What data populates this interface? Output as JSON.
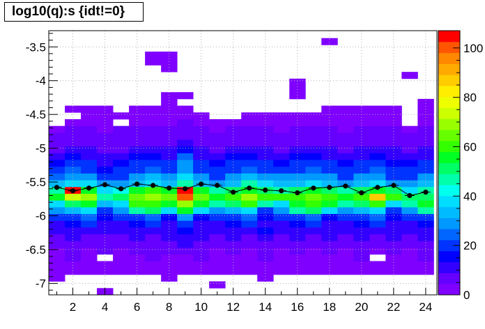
{
  "title": "log10(q):s {idt!=0}",
  "chart_data": {
    "type": "heatmap",
    "title": "log10(q):s {idt!=0}",
    "xlabel": "",
    "ylabel": "",
    "xlim": [
      0.5,
      24.7
    ],
    "ylim": [
      -7.17,
      -3.26
    ],
    "x_ticks": [
      2,
      4,
      6,
      8,
      10,
      12,
      14,
      16,
      18,
      20,
      22,
      24
    ],
    "y_ticks": [
      -3.5,
      -4,
      -4.5,
      -5,
      -5.5,
      -6,
      -6.5,
      -7
    ],
    "x_tick_labels": [
      "2",
      "4",
      "6",
      "8",
      "10",
      "12",
      "14",
      "16",
      "18",
      "20",
      "22",
      "24"
    ],
    "y_tick_labels": [
      "-3.5",
      "-4",
      "-4.5",
      "-5",
      "-5.5",
      "-6",
      "-6.5",
      "-7"
    ],
    "grid": true,
    "colorbar": {
      "zlim": [
        0,
        107
      ],
      "ticks": [
        0,
        20,
        40,
        60,
        80,
        100
      ],
      "tick_labels": [
        "0",
        "20",
        "40",
        "60",
        "80",
        "100"
      ],
      "colors": [
        "#7f00ff",
        "#6600ff",
        "#3300ff",
        "#0000ff",
        "#0033ff",
        "#0066ff",
        "#0099ff",
        "#00bbff",
        "#00ddff",
        "#00ffee",
        "#00ffaa",
        "#00ff66",
        "#00ff22",
        "#33ff00",
        "#66ff00",
        "#99ff00",
        "#ccff00",
        "#eeff00",
        "#ffee00",
        "#ffcc00",
        "#ffaa00",
        "#ff8800",
        "#ff5500",
        "#ff0000"
      ]
    },
    "x_bins": [
      1,
      2,
      3,
      4,
      5,
      6,
      7,
      8,
      9,
      10,
      11,
      12,
      13,
      14,
      15,
      16,
      17,
      18,
      19,
      20,
      21,
      22,
      23,
      24
    ],
    "y_bin_edges": [
      -7.17,
      -7.07,
      -6.97,
      -6.87,
      -6.77,
      -6.67,
      -6.57,
      -6.47,
      -6.37,
      -6.27,
      -6.17,
      -6.07,
      -5.97,
      -5.87,
      -5.77,
      -5.67,
      -5.57,
      -5.47,
      -5.37,
      -5.27,
      -5.17,
      -5.07,
      -4.97,
      -4.87,
      -4.77,
      -4.67,
      -4.57,
      -4.47,
      -4.37,
      -4.27,
      -4.17,
      -4.07,
      -3.97,
      -3.87,
      -3.77,
      -3.67,
      -3.57,
      -3.47,
      -3.37,
      -3.26
    ],
    "counts": [
      [
        0,
        0,
        0,
        2,
        0,
        0,
        0,
        0,
        0,
        0,
        0,
        0,
        0,
        0,
        0,
        0,
        0,
        0,
        0,
        0,
        0,
        0,
        0,
        0
      ],
      [
        0,
        0,
        0,
        0,
        0,
        0,
        0,
        0,
        0,
        0,
        2,
        0,
        0,
        0,
        0,
        0,
        0,
        0,
        0,
        0,
        0,
        0,
        0,
        0
      ],
      [
        2,
        0,
        0,
        0,
        0,
        0,
        0,
        2,
        0,
        0,
        0,
        0,
        0,
        2,
        0,
        0,
        0,
        0,
        0,
        0,
        0,
        0,
        0,
        0
      ],
      [
        2,
        2,
        2,
        2,
        2,
        2,
        2,
        2,
        2,
        2,
        2,
        2,
        2,
        2,
        2,
        2,
        2,
        2,
        2,
        2,
        2,
        2,
        2,
        2
      ],
      [
        2,
        3,
        2,
        3,
        2,
        3,
        2,
        3,
        2,
        3,
        2,
        3,
        2,
        3,
        2,
        3,
        2,
        3,
        2,
        3,
        2,
        3,
        2,
        3
      ],
      [
        2,
        5,
        2,
        0,
        2,
        3,
        5,
        4,
        3,
        5,
        2,
        4,
        3,
        5,
        2,
        4,
        3,
        4,
        2,
        5,
        0,
        4,
        3,
        5
      ],
      [
        3,
        6,
        4,
        5,
        3,
        5,
        6,
        7,
        5,
        6,
        4,
        5,
        3,
        6,
        4,
        5,
        3,
        6,
        4,
        5,
        3,
        6,
        4,
        5
      ],
      [
        5,
        8,
        5,
        6,
        5,
        8,
        5,
        6,
        9,
        6,
        5,
        7,
        6,
        8,
        5,
        7,
        6,
        8,
        5,
        7,
        6,
        8,
        5,
        7
      ],
      [
        8,
        9,
        8,
        6,
        8,
        9,
        8,
        9,
        9,
        10,
        8,
        9,
        8,
        9,
        8,
        9,
        8,
        9,
        8,
        9,
        8,
        9,
        8,
        9
      ],
      [
        9,
        10,
        12,
        10,
        9,
        10,
        12,
        10,
        14,
        10,
        9,
        10,
        12,
        15,
        9,
        10,
        12,
        10,
        9,
        10,
        12,
        10,
        9,
        10
      ],
      [
        12,
        15,
        18,
        10,
        12,
        15,
        18,
        10,
        22,
        10,
        12,
        15,
        18,
        10,
        12,
        15,
        18,
        10,
        12,
        15,
        18,
        10,
        12,
        15
      ],
      [
        18,
        22,
        25,
        15,
        18,
        22,
        25,
        15,
        28,
        15,
        18,
        22,
        25,
        15,
        18,
        22,
        25,
        15,
        18,
        22,
        25,
        15,
        18,
        22
      ],
      [
        30,
        35,
        40,
        20,
        30,
        45,
        50,
        40,
        55,
        40,
        30,
        35,
        40,
        20,
        30,
        45,
        50,
        40,
        30,
        35,
        40,
        20,
        30,
        45
      ],
      [
        40,
        50,
        55,
        35,
        40,
        60,
        62,
        55,
        70,
        55,
        45,
        50,
        60,
        45,
        40,
        55,
        60,
        55,
        45,
        50,
        60,
        40,
        45,
        55
      ],
      [
        55,
        72,
        70,
        45,
        50,
        65,
        68,
        65,
        100,
        65,
        55,
        60,
        68,
        62,
        58,
        60,
        65,
        62,
        55,
        58,
        85,
        60,
        50,
        50
      ],
      [
        45,
        105,
        55,
        40,
        42,
        55,
        60,
        55,
        105,
        55,
        45,
        50,
        55,
        50,
        45,
        52,
        55,
        52,
        45,
        50,
        55,
        50,
        40,
        45
      ],
      [
        35,
        40,
        40,
        28,
        30,
        35,
        40,
        35,
        45,
        35,
        30,
        35,
        45,
        40,
        35,
        35,
        38,
        35,
        30,
        35,
        40,
        30,
        30,
        35
      ],
      [
        25,
        30,
        30,
        20,
        22,
        28,
        32,
        28,
        38,
        28,
        22,
        28,
        32,
        30,
        28,
        28,
        30,
        28,
        22,
        28,
        30,
        22,
        22,
        28
      ],
      [
        20,
        25,
        22,
        15,
        18,
        22,
        26,
        22,
        28,
        22,
        18,
        22,
        25,
        22,
        20,
        22,
        25,
        22,
        18,
        22,
        25,
        18,
        18,
        22
      ],
      [
        15,
        18,
        18,
        12,
        15,
        18,
        22,
        18,
        28,
        18,
        15,
        18,
        20,
        18,
        15,
        18,
        20,
        18,
        15,
        18,
        20,
        15,
        15,
        18
      ],
      [
        10,
        15,
        12,
        10,
        12,
        15,
        15,
        12,
        25,
        12,
        10,
        15,
        15,
        12,
        10,
        15,
        15,
        12,
        10,
        12,
        15,
        12,
        10,
        12
      ],
      [
        8,
        10,
        10,
        8,
        8,
        10,
        12,
        10,
        15,
        10,
        8,
        10,
        12,
        10,
        8,
        10,
        12,
        10,
        8,
        10,
        12,
        10,
        8,
        10
      ],
      [
        6,
        8,
        8,
        6,
        6,
        8,
        8,
        8,
        10,
        8,
        6,
        8,
        8,
        8,
        6,
        8,
        8,
        8,
        6,
        8,
        8,
        8,
        6,
        8
      ],
      [
        5,
        6,
        6,
        5,
        5,
        6,
        6,
        6,
        8,
        6,
        5,
        6,
        6,
        6,
        5,
        6,
        6,
        6,
        5,
        6,
        6,
        6,
        5,
        6
      ],
      [
        3,
        5,
        5,
        4,
        5,
        5,
        5,
        5,
        6,
        5,
        4,
        5,
        5,
        5,
        4,
        5,
        5,
        5,
        4,
        5,
        5,
        5,
        4,
        5
      ],
      [
        0,
        3,
        3,
        3,
        0,
        3,
        3,
        3,
        5,
        3,
        3,
        3,
        3,
        3,
        3,
        3,
        3,
        3,
        3,
        3,
        3,
        3,
        0,
        3
      ],
      [
        0,
        0,
        3,
        3,
        3,
        3,
        3,
        3,
        3,
        3,
        0,
        0,
        3,
        3,
        3,
        3,
        3,
        3,
        3,
        3,
        3,
        3,
        0,
        3
      ],
      [
        0,
        2,
        2,
        2,
        0,
        2,
        2,
        2,
        2,
        0,
        0,
        0,
        0,
        0,
        0,
        0,
        0,
        2,
        2,
        2,
        2,
        2,
        0,
        2
      ],
      [
        0,
        0,
        0,
        0,
        0,
        0,
        0,
        2,
        0,
        0,
        0,
        0,
        0,
        0,
        0,
        0,
        0,
        0,
        0,
        0,
        0,
        0,
        0,
        2
      ],
      [
        0,
        0,
        0,
        0,
        0,
        0,
        0,
        2,
        2,
        0,
        0,
        0,
        0,
        0,
        0,
        2,
        0,
        0,
        0,
        0,
        0,
        0,
        0,
        0
      ],
      [
        0,
        0,
        0,
        0,
        0,
        0,
        0,
        0,
        0,
        0,
        0,
        0,
        0,
        0,
        0,
        2,
        0,
        0,
        0,
        0,
        0,
        0,
        0,
        0
      ],
      [
        0,
        0,
        0,
        0,
        0,
        0,
        0,
        0,
        0,
        0,
        0,
        0,
        0,
        0,
        0,
        2,
        0,
        0,
        0,
        0,
        0,
        0,
        0,
        0
      ],
      [
        0,
        0,
        0,
        0,
        0,
        0,
        0,
        0,
        0,
        0,
        0,
        0,
        0,
        0,
        0,
        0,
        0,
        0,
        0,
        0,
        0,
        0,
        2,
        0
      ],
      [
        0,
        0,
        0,
        0,
        0,
        0,
        0,
        2,
        0,
        0,
        0,
        0,
        0,
        0,
        0,
        0,
        0,
        0,
        0,
        0,
        0,
        0,
        0,
        0
      ],
      [
        0,
        0,
        0,
        0,
        0,
        0,
        2,
        2,
        0,
        0,
        0,
        0,
        0,
        0,
        0,
        0,
        0,
        0,
        0,
        0,
        0,
        0,
        0,
        0
      ],
      [
        0,
        0,
        0,
        0,
        0,
        0,
        2,
        2,
        0,
        0,
        0,
        0,
        0,
        0,
        0,
        0,
        0,
        0,
        0,
        0,
        0,
        0,
        0,
        0
      ],
      [
        0,
        0,
        0,
        0,
        0,
        0,
        0,
        0,
        0,
        0,
        0,
        0,
        0,
        0,
        0,
        0,
        0,
        0,
        0,
        0,
        0,
        0,
        0,
        0
      ],
      [
        0,
        0,
        0,
        0,
        0,
        0,
        0,
        0,
        0,
        0,
        0,
        0,
        0,
        0,
        0,
        0,
        0,
        2,
        0,
        0,
        0,
        0,
        0,
        0
      ],
      [
        0,
        0,
        0,
        0,
        0,
        0,
        0,
        0,
        0,
        0,
        0,
        0,
        0,
        0,
        0,
        0,
        0,
        0,
        0,
        0,
        0,
        0,
        0,
        0
      ]
    ],
    "profile": {
      "x": [
        1,
        2,
        3,
        4,
        5,
        6,
        7,
        8,
        9,
        10,
        11,
        12,
        13,
        14,
        15,
        16,
        17,
        18,
        19,
        20,
        21,
        22,
        23,
        24
      ],
      "y": [
        -5.58,
        -5.63,
        -5.59,
        -5.54,
        -5.6,
        -5.53,
        -5.55,
        -5.59,
        -5.6,
        -5.53,
        -5.55,
        -5.65,
        -5.59,
        -5.62,
        -5.63,
        -5.66,
        -5.59,
        -5.58,
        -5.56,
        -5.66,
        -5.58,
        -5.55,
        -5.7,
        -5.65
      ]
    }
  }
}
